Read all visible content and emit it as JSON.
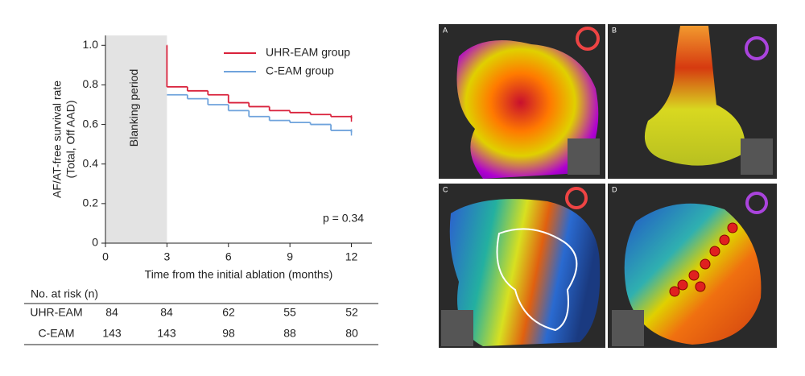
{
  "chart_data": {
    "type": "step",
    "xlabel": "Time from the initial ablation (months)",
    "ylabel": [
      "AF/AT-free survival rate",
      "(Total, Off AAD)"
    ],
    "xlim": [
      0,
      13
    ],
    "ylim": [
      0,
      1.05
    ],
    "xticks": [
      0,
      3,
      6,
      9,
      12
    ],
    "yticks": [
      0,
      0.2,
      0.4,
      0.6,
      0.8,
      {
        "value": 1,
        "label": "1.0"
      }
    ],
    "blanking": {
      "label": "Blanking period",
      "x": [
        0,
        3
      ],
      "color": "#e3e3e3"
    },
    "annotation": "p = 0.34",
    "legend": "upper right",
    "series": [
      {
        "name": "UHR-EAM group",
        "color": "#d9213b",
        "x": [
          3,
          3,
          4,
          5,
          6,
          7,
          8,
          9,
          10,
          11,
          12
        ],
        "values": [
          1.0,
          0.79,
          0.77,
          0.75,
          0.71,
          0.69,
          0.67,
          0.66,
          0.65,
          0.64,
          0.63
        ]
      },
      {
        "name": "C-EAM group",
        "color": "#6fa3dc",
        "x": [
          3,
          4,
          5,
          6,
          7,
          8,
          9,
          10,
          11,
          12
        ],
        "values": [
          0.75,
          0.73,
          0.7,
          0.67,
          0.64,
          0.62,
          0.61,
          0.6,
          0.57,
          0.56
        ]
      }
    ]
  },
  "risk_table": {
    "title": "No. at risk (n)",
    "times": [
      0,
      3,
      6,
      9,
      12
    ],
    "rows": [
      {
        "name": "UHR-EAM",
        "values": [
          84,
          84,
          62,
          55,
          52
        ]
      },
      {
        "name": "C-EAM",
        "values": [
          143,
          143,
          98,
          88,
          80
        ]
      }
    ]
  },
  "panels": [
    "A",
    "B",
    "C",
    "D"
  ]
}
